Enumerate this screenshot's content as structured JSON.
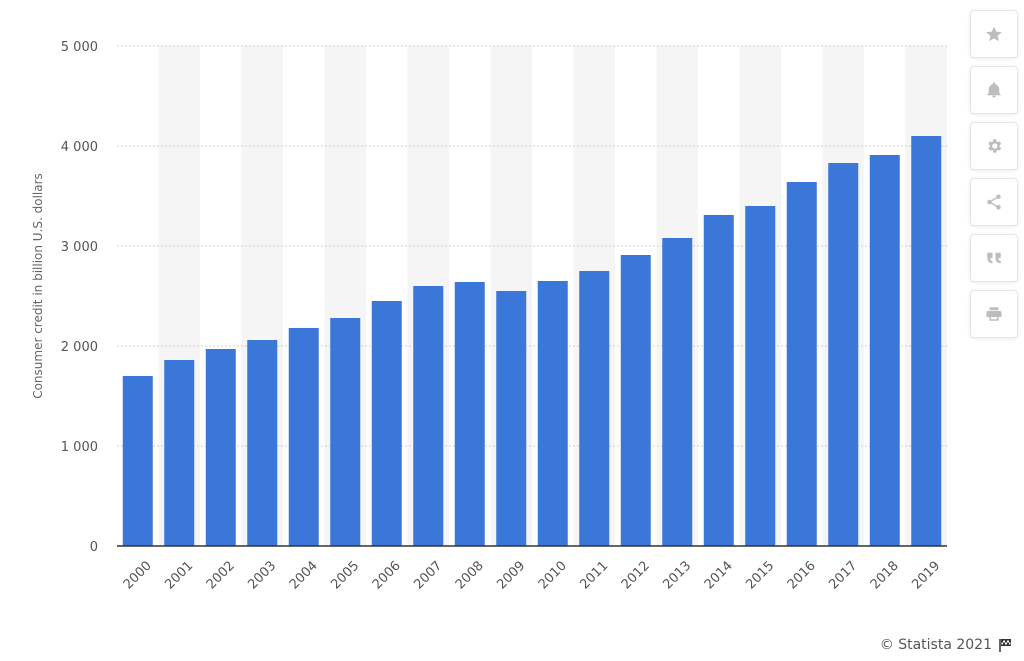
{
  "chart_data": {
    "type": "bar",
    "categories": [
      "2000",
      "2001",
      "2002",
      "2003",
      "2004",
      "2005",
      "2006",
      "2007",
      "2008",
      "2009",
      "2010",
      "2011",
      "2012",
      "2013",
      "2014",
      "2015",
      "2016",
      "2017",
      "2018",
      "2019"
    ],
    "values": [
      1700,
      1860,
      1970,
      2060,
      2180,
      2280,
      2450,
      2600,
      2640,
      2550,
      2650,
      2750,
      2910,
      3080,
      3310,
      3400,
      3640,
      3830,
      3910,
      4100
    ],
    "title": "",
    "xlabel": "",
    "ylabel": "Consumer credit in billion U.S. dollars",
    "ylim": [
      0,
      5000
    ],
    "yticks": [
      0,
      1000,
      2000,
      3000,
      4000,
      5000
    ],
    "ytick_labels": [
      "0",
      "1 000",
      "2 000",
      "3 000",
      "4 000",
      "5 000"
    ],
    "grid": true,
    "bar_color": "#3b76d9"
  },
  "toolbar": {
    "items": [
      {
        "name": "star-icon"
      },
      {
        "name": "bell-icon"
      },
      {
        "name": "gear-icon"
      },
      {
        "name": "share-icon"
      },
      {
        "name": "quote-icon"
      },
      {
        "name": "print-icon"
      }
    ]
  },
  "footer": {
    "copyright": "© Statista 2021"
  }
}
